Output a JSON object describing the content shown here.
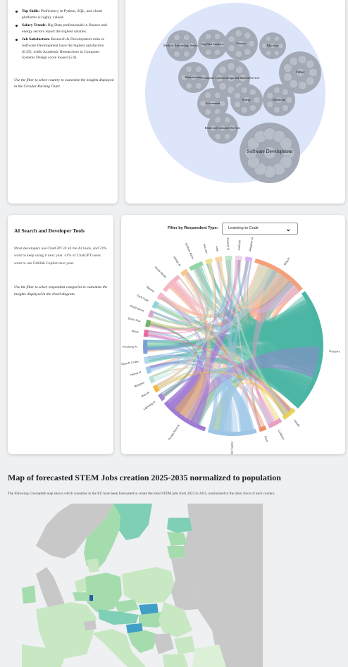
{
  "skills_panel": {
    "bullets": [
      {
        "label": "Top Skills:",
        "text": "Proficiency in Python, SQL, and cloud platforms is highly valued."
      },
      {
        "label": "Salary Trends:",
        "text": "Big Data professionals in finance and energy sectors report the highest salaries."
      },
      {
        "label": "Job Satisfaction:",
        "text": "Research & Development roles in Software Development have the highest satisfaction (6.35), while Academic Researchers in Computer Systems Design score lowest (5.0)."
      }
    ],
    "note": "Use the filter to select country to customize the insights displayed in the Circular Packing Chart."
  },
  "packing_chart": {
    "colors": {
      "outer": "#dde5fb",
      "group": "#a3aab6",
      "leaf": "#b9bfc9"
    },
    "groups": [
      {
        "label": "Medical, Advertising, Services"
      },
      {
        "label": "Big Data Analytics"
      },
      {
        "label": "Finance"
      },
      {
        "label": "Education"
      },
      {
        "label": "Manufacturing"
      },
      {
        "label": "Computer Systems Design and Related Services"
      },
      {
        "label": "Other"
      },
      {
        "label": "Government"
      },
      {
        "label": "Energy"
      },
      {
        "label": "Healthcare"
      },
      {
        "label": "Retail and Consumer Services"
      },
      {
        "label": "Software Development"
      }
    ]
  },
  "ai_panel": {
    "title": "AI Search and Developer Tools",
    "body": "Most developers use ChatGPT of all the AI tools, and 74% want to keep using it next year. 41% of ChatGPT users want to use GitHub Copilot next year.",
    "note": "Use the filter to select respondent categories to customize the insights displayed in the chord diagram."
  },
  "chord_panel": {
    "filter_label": "Filter by Respondent Type:",
    "filter_value": "Learning to Code",
    "filter_icon": "chevron-down-icon",
    "tools": [
      {
        "label": "Bing AI",
        "color": "#f4a07a",
        "weight": 8
      },
      {
        "label": "ChatGPT",
        "color": "#4bb5a4",
        "weight": 18
      },
      {
        "label": "Claude",
        "color": "#e6d35a",
        "weight": 2
      },
      {
        "label": "Codeium",
        "color": "#e7a0c4",
        "weight": 2
      },
      {
        "label": "Devy",
        "color": "#ef8f60",
        "weight": 1
      },
      {
        "label": "GitHub Copilot",
        "color": "#9dc5e6",
        "weight": 7
      },
      {
        "label": "Google Bard AI",
        "color": "#a07bd4",
        "weight": 7
      },
      {
        "label": "Lightning AI",
        "color": "#a78ad6",
        "weight": 1
      },
      {
        "label": "Meta AI",
        "color": "#f2b742",
        "weight": 1
      },
      {
        "label": "Metaphor",
        "color": "#b7e0d8",
        "weight": 1
      },
      {
        "label": "Neeva AI",
        "color": "#9ec7e8",
        "weight": 1
      },
      {
        "label": "OpenAI Codex",
        "color": "#b6d8ef",
        "weight": 1
      },
      {
        "label": "Perplexity AI",
        "color": "#7a9fd8",
        "weight": 2
      },
      {
        "label": "Phind",
        "color": "#ea6aa0",
        "weight": 1
      },
      {
        "label": "Quora Poe",
        "color": "#71b36d",
        "weight": 1
      },
      {
        "label": "Replit Ghost",
        "color": "#d7a6cf",
        "weight": 1
      },
      {
        "label": "Snyk Code",
        "color": "#8ed3df",
        "weight": 1
      },
      {
        "label": "Tabnine",
        "color": "#f6b9ca",
        "weight": 1
      },
      {
        "label": "Visual Studio",
        "color": "#f4b8c4",
        "weight": 3
      },
      {
        "label": "Whispr AI",
        "color": "#f4c88d",
        "weight": 1
      },
      {
        "label": "Wolfram Alpha",
        "color": "#91d6a3",
        "weight": 2
      },
      {
        "label": "You.com",
        "color": "#eee39a",
        "weight": 1
      },
      {
        "label": "Andi",
        "color": "#fdd4a6",
        "weight": 1
      },
      {
        "label": "Amazon Q",
        "color": "#bfe6c8",
        "weight": 1
      },
      {
        "label": "AskCodi",
        "color": "#f3d2e6",
        "weight": 1
      },
      {
        "label": "Metaphor AI",
        "color": "#d9b5f0",
        "weight": 1
      }
    ]
  },
  "map_section": {
    "title": "Map of forecasted STEM Jobs creation 2025-2035 normalized to population",
    "description": "The following Choropleth map shows which countries in the EU have been forecasted to create the most STEM jobs from 2025 to 2035, normalized to the labor force of each country.",
    "colors": {
      "sea": "#eef0f2",
      "no_data": "#c8c8c8",
      "low": "#c7e8c2",
      "mid": "#a5dcae",
      "high": "#7fcfb6",
      "top": "#3f9fc6",
      "max": "#2a5aa8"
    }
  }
}
